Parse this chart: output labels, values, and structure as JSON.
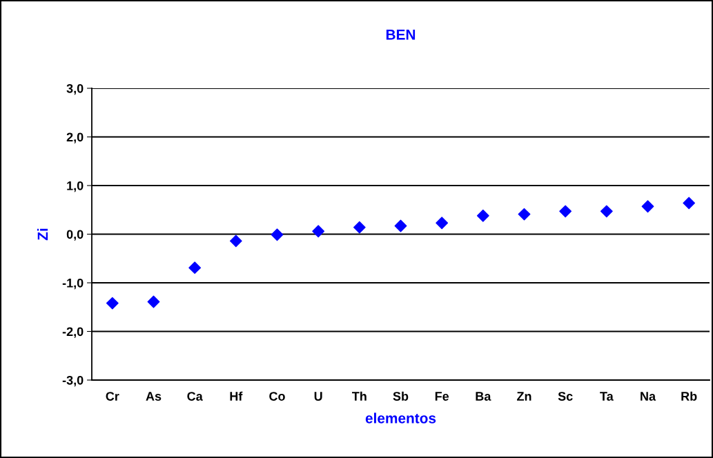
{
  "chart_data": {
    "type": "scatter",
    "title": "BEN",
    "xlabel": "elementos",
    "ylabel": "Zi",
    "categories": [
      "Cr",
      "As",
      "Ca",
      "Hf",
      "Co",
      "U",
      "Th",
      "Sb",
      "Fe",
      "Ba",
      "Zn",
      "Sc",
      "Ta",
      "Na",
      "Rb"
    ],
    "series": [
      {
        "color": "#0000ff",
        "values": [
          -1.42,
          -1.39,
          -0.69,
          -0.14,
          -0.01,
          0.06,
          0.14,
          0.17,
          0.23,
          0.38,
          0.41,
          0.47,
          0.47,
          0.57,
          0.64
        ]
      }
    ],
    "ylim": [
      -3,
      3
    ],
    "yticks": [
      {
        "value": -3,
        "label": "-3,0"
      },
      {
        "value": -2,
        "label": "-2,0"
      },
      {
        "value": -1,
        "label": "-1,0"
      },
      {
        "value": 0,
        "label": "0,0"
      },
      {
        "value": 1,
        "label": "1,0"
      },
      {
        "value": 2,
        "label": "2,0"
      },
      {
        "value": 3,
        "label": "3,0"
      }
    ],
    "grid": "y",
    "marker": "diamond",
    "legend": false
  }
}
